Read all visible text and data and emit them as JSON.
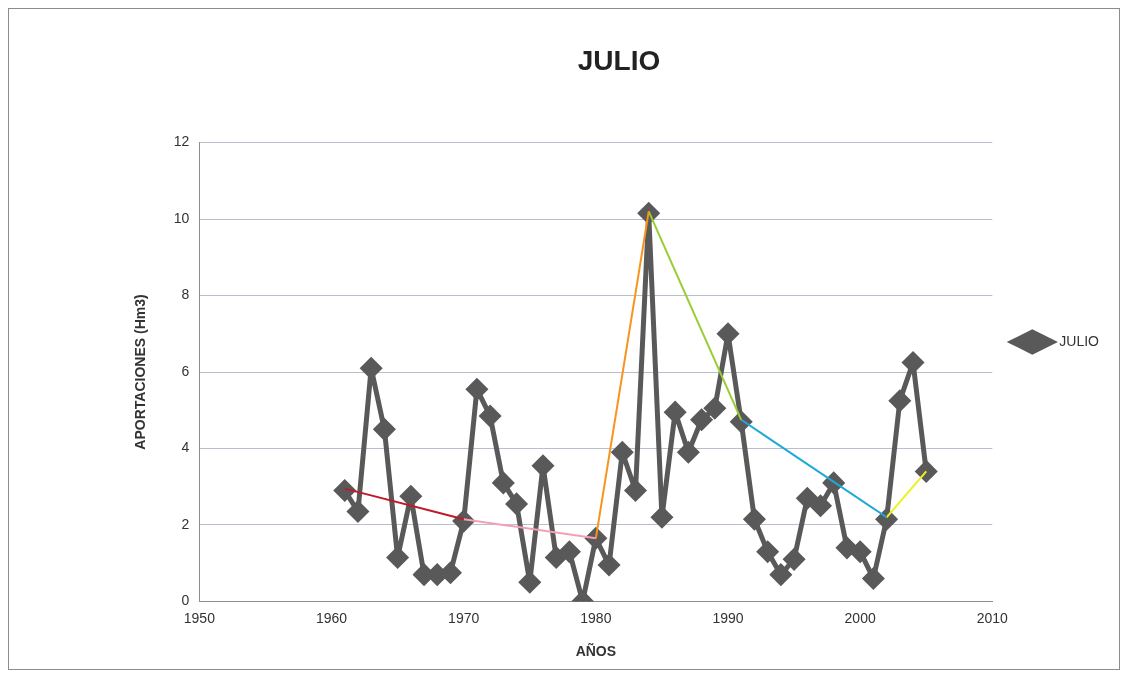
{
  "chart_data": {
    "type": "line",
    "title": "JULIO",
    "xlabel": "AÑOS",
    "ylabel": "APORTACIONES (Hm3)",
    "x": [
      1961,
      1962,
      1963,
      1964,
      1965,
      1966,
      1967,
      1968,
      1969,
      1970,
      1971,
      1972,
      1973,
      1974,
      1975,
      1976,
      1977,
      1978,
      1979,
      1980,
      1981,
      1982,
      1983,
      1984,
      1985,
      1986,
      1987,
      1988,
      1989,
      1990,
      1991,
      1992,
      1993,
      1994,
      1995,
      1996,
      1997,
      1998,
      1999,
      2000,
      2001,
      2002,
      2003,
      2004,
      2005
    ],
    "series": [
      {
        "name": "JULIO",
        "color": "#595959",
        "marker": "diamond",
        "values": [
          2.9,
          2.35,
          6.1,
          4.5,
          1.15,
          2.75,
          0.7,
          0.7,
          0.75,
          2.1,
          5.55,
          4.85,
          3.1,
          2.55,
          0.5,
          3.55,
          1.15,
          1.3,
          0,
          1.65,
          0.95,
          3.9,
          2.9,
          10.15,
          2.2,
          4.95,
          3.9,
          4.75,
          5.05,
          7.0,
          4.7,
          2.15,
          1.3,
          0.7,
          1.1,
          2.7,
          2.5,
          3.1,
          1.4,
          1.3,
          0.6,
          2.15,
          5.25,
          6.25,
          3.4
        ]
      },
      {
        "type": "line",
        "color": "#c0192c",
        "marker": "none",
        "x": [
          1961,
          1970
        ],
        "values": [
          2.95,
          2.15
        ]
      },
      {
        "type": "line",
        "color": "#f4a0b4",
        "marker": "none",
        "x": [
          1970,
          1980
        ],
        "values": [
          2.15,
          1.65
        ]
      },
      {
        "type": "line",
        "color": "#f7941d",
        "marker": "none",
        "x": [
          1980,
          1984
        ],
        "values": [
          1.65,
          10.2
        ]
      },
      {
        "type": "line",
        "color": "#9acd32",
        "marker": "none",
        "x": [
          1984,
          1991
        ],
        "values": [
          10.2,
          4.75
        ]
      },
      {
        "type": "line",
        "color": "#1fa8d8",
        "marker": "none",
        "x": [
          1991,
          2002
        ],
        "values": [
          4.75,
          2.2
        ]
      },
      {
        "type": "line",
        "color": "#f0f020",
        "marker": "none",
        "x": [
          2002,
          2005
        ],
        "values": [
          2.2,
          3.4
        ]
      }
    ],
    "xlim": [
      1950,
      2010
    ],
    "xticks": [
      1950,
      1960,
      1970,
      1980,
      1990,
      2000,
      2010
    ],
    "ylim": [
      0,
      12
    ],
    "yticks": [
      0,
      2,
      4,
      6,
      8,
      10,
      12
    ],
    "grid": "y",
    "legend": "right"
  }
}
